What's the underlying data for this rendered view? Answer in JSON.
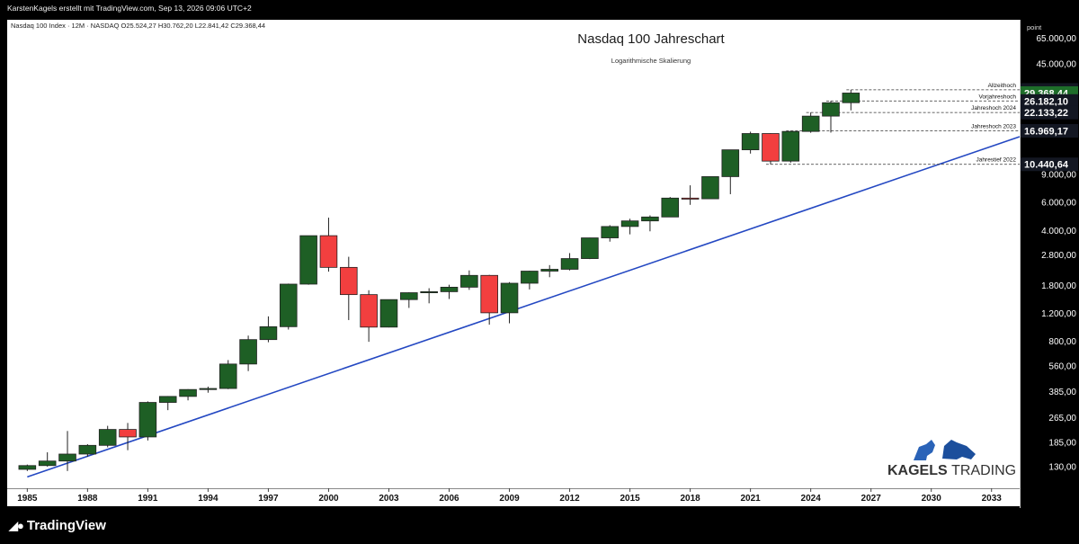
{
  "header": {
    "attribution": "KarstenKagels erstellt mit TradingView.com, Sep 13, 2026 09:06 UTC+2",
    "symbol_line": "Nasdaq 100 Index · 12M · NASDAQ",
    "ohlc": "O25.524,27 H30.762,20 L22.841,42 C29.368,44"
  },
  "footer": {
    "brand": "TradingView"
  },
  "watermark": {
    "brand_bold": "KAGELS",
    "brand_light": "TRADING"
  },
  "colors": {
    "up": "#1e5f25",
    "down": "#f23f3f",
    "trendline": "#2448c2",
    "background": "#ffffff"
  },
  "chart_data": {
    "type": "candlestick",
    "title": "Nasdaq 100 Jahreschart",
    "subtitle": "Logarithmische Skalierung",
    "y_unit_label": "point",
    "y_scale": "log",
    "ylim": [
      95,
      85000
    ],
    "xlim": [
      1984,
      2034.4
    ],
    "y_ticks": [
      {
        "value": 65000,
        "label": "65.000,00"
      },
      {
        "value": 45000,
        "label": "45.000,00"
      },
      {
        "value": 9000,
        "label": "9.000,00"
      },
      {
        "value": 6000,
        "label": "6.000,00"
      },
      {
        "value": 4000,
        "label": "4.000,00"
      },
      {
        "value": 2800,
        "label": "2.800,00"
      },
      {
        "value": 1800,
        "label": "1.800,00"
      },
      {
        "value": 1200,
        "label": "1.200,00"
      },
      {
        "value": 800,
        "label": "800,00"
      },
      {
        "value": 560,
        "label": "560,00"
      },
      {
        "value": 385,
        "label": "385,00"
      },
      {
        "value": 265,
        "label": "265,00"
      },
      {
        "value": 185,
        "label": "185,00"
      },
      {
        "value": 130,
        "label": "130,00"
      }
    ],
    "x_ticks": [
      "1985",
      "1988",
      "1991",
      "1994",
      "1997",
      "2000",
      "2003",
      "2006",
      "2009",
      "2012",
      "2015",
      "2018",
      "2021",
      "2024",
      "2027",
      "2030",
      "2033"
    ],
    "candles": [
      {
        "year": 1985,
        "o": 125,
        "h": 134,
        "l": 122,
        "c": 132
      },
      {
        "year": 1986,
        "o": 132,
        "h": 160,
        "l": 130,
        "c": 141
      },
      {
        "year": 1987,
        "o": 141,
        "h": 218,
        "l": 122,
        "c": 156
      },
      {
        "year": 1988,
        "o": 156,
        "h": 180,
        "l": 150,
        "c": 177
      },
      {
        "year": 1989,
        "o": 177,
        "h": 235,
        "l": 172,
        "c": 223
      },
      {
        "year": 1990,
        "o": 223,
        "h": 245,
        "l": 165,
        "c": 200
      },
      {
        "year": 1991,
        "o": 200,
        "h": 335,
        "l": 190,
        "c": 330
      },
      {
        "year": 1992,
        "o": 330,
        "h": 362,
        "l": 295,
        "c": 360
      },
      {
        "year": 1993,
        "o": 360,
        "h": 400,
        "l": 340,
        "c": 398
      },
      {
        "year": 1994,
        "o": 398,
        "h": 415,
        "l": 380,
        "c": 404
      },
      {
        "year": 1995,
        "o": 404,
        "h": 610,
        "l": 400,
        "c": 576
      },
      {
        "year": 1996,
        "o": 576,
        "h": 870,
        "l": 520,
        "c": 821
      },
      {
        "year": 1997,
        "o": 821,
        "h": 1150,
        "l": 790,
        "c": 990
      },
      {
        "year": 1998,
        "o": 990,
        "h": 1850,
        "l": 950,
        "c": 1836
      },
      {
        "year": 1999,
        "o": 1836,
        "h": 3710,
        "l": 1820,
        "c": 3708
      },
      {
        "year": 2000,
        "o": 3708,
        "h": 4816,
        "l": 2200,
        "c": 2341
      },
      {
        "year": 2001,
        "o": 2341,
        "h": 2730,
        "l": 1090,
        "c": 1577
      },
      {
        "year": 2002,
        "o": 1577,
        "h": 1680,
        "l": 795,
        "c": 984
      },
      {
        "year": 2003,
        "o": 984,
        "h": 1470,
        "l": 980,
        "c": 1467
      },
      {
        "year": 2004,
        "o": 1467,
        "h": 1630,
        "l": 1300,
        "c": 1621
      },
      {
        "year": 2005,
        "o": 1621,
        "h": 1730,
        "l": 1390,
        "c": 1645
      },
      {
        "year": 2006,
        "o": 1645,
        "h": 1820,
        "l": 1480,
        "c": 1756
      },
      {
        "year": 2007,
        "o": 1756,
        "h": 2240,
        "l": 1690,
        "c": 2084
      },
      {
        "year": 2008,
        "o": 2084,
        "h": 2100,
        "l": 1020,
        "c": 1211
      },
      {
        "year": 2009,
        "o": 1211,
        "h": 1890,
        "l": 1040,
        "c": 1860
      },
      {
        "year": 2010,
        "o": 1860,
        "h": 2230,
        "l": 1700,
        "c": 2217
      },
      {
        "year": 2011,
        "o": 2217,
        "h": 2420,
        "l": 2030,
        "c": 2277
      },
      {
        "year": 2012,
        "o": 2277,
        "h": 2880,
        "l": 2240,
        "c": 2660
      },
      {
        "year": 2013,
        "o": 2660,
        "h": 3600,
        "l": 2640,
        "c": 3592
      },
      {
        "year": 2014,
        "o": 3592,
        "h": 4320,
        "l": 3400,
        "c": 4236
      },
      {
        "year": 2015,
        "o": 4236,
        "h": 4740,
        "l": 3780,
        "c": 4594
      },
      {
        "year": 2016,
        "o": 4594,
        "h": 4980,
        "l": 3950,
        "c": 4863
      },
      {
        "year": 2017,
        "o": 4863,
        "h": 6500,
        "l": 4850,
        "c": 6397
      },
      {
        "year": 2018,
        "o": 6397,
        "h": 7700,
        "l": 5800,
        "c": 6330
      },
      {
        "year": 2019,
        "o": 6330,
        "h": 8750,
        "l": 6300,
        "c": 8733
      },
      {
        "year": 2020,
        "o": 8733,
        "h": 12900,
        "l": 6770,
        "c": 12888
      },
      {
        "year": 2021,
        "o": 12888,
        "h": 16764,
        "l": 12200,
        "c": 16320
      },
      {
        "year": 2022,
        "o": 16320,
        "h": 16400,
        "l": 10440,
        "c": 10939
      },
      {
        "year": 2023,
        "o": 10939,
        "h": 16969,
        "l": 10700,
        "c": 16826
      },
      {
        "year": 2024,
        "o": 16826,
        "h": 22133,
        "l": 16500,
        "c": 21012
      },
      {
        "year": 2025,
        "o": 21012,
        "h": 26182,
        "l": 16540,
        "c": 25524
      },
      {
        "year": 2026,
        "o": 25524,
        "h": 30762,
        "l": 22841,
        "c": 29368
      }
    ],
    "trendline": {
      "from": {
        "x": 1985,
        "y": 112
      },
      "to": {
        "x": 2034.4,
        "y": 15600
      }
    },
    "levels": [
      {
        "value": 30762.2,
        "price_label": "30.762,20",
        "annotation": "Allzeithoch",
        "start_year": 2026,
        "box": "dark"
      },
      {
        "value": 29368.44,
        "price_label": "29.368,44",
        "annotation": "",
        "start_year": null,
        "box": "green"
      },
      {
        "value": 26182.1,
        "price_label": "26.182,10",
        "annotation": "Vorjahreshoch",
        "start_year": 2025,
        "box": "dark"
      },
      {
        "value": 22133.22,
        "price_label": "22.133,22",
        "annotation": "Jahreshoch 2024",
        "start_year": 2024,
        "box": "dark"
      },
      {
        "value": 16969.17,
        "price_label": "16.969,17",
        "annotation": "Jahreshoch 2023",
        "start_year": 2023,
        "box": "dark"
      },
      {
        "value": 10440.64,
        "price_label": "10.440,64",
        "annotation": "Jahrestief 2022",
        "start_year": 2022,
        "box": "dark"
      }
    ]
  }
}
